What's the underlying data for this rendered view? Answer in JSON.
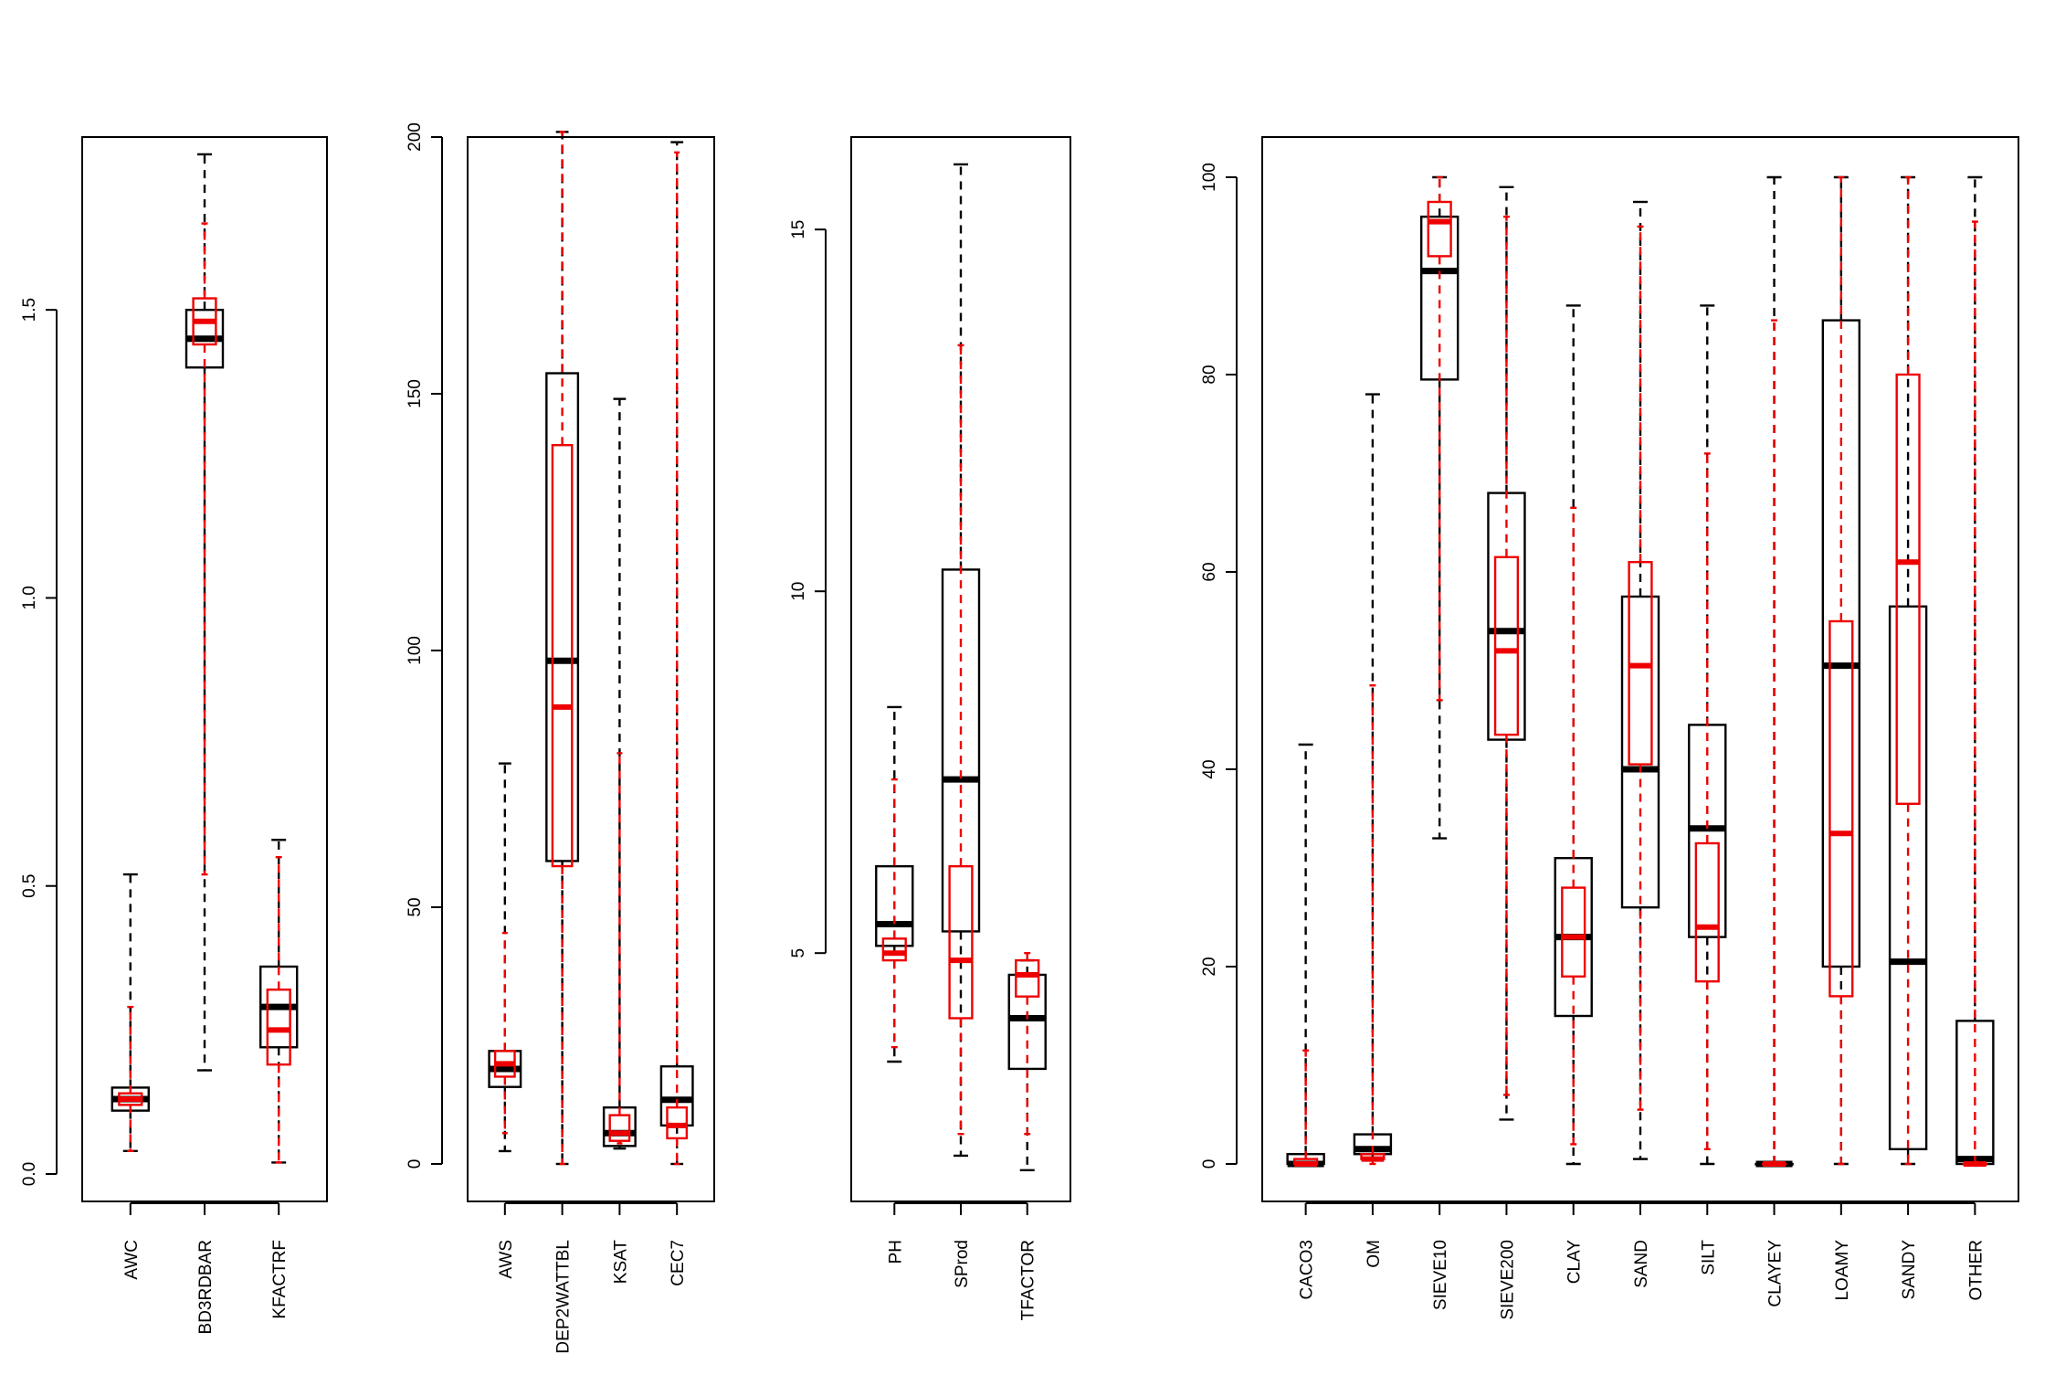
{
  "colors": {
    "black": "#000000",
    "red": "#ee0000"
  },
  "chart_data": [
    {
      "type": "boxplot",
      "ylim": [
        0,
        1.8
      ],
      "yticks": [
        0,
        0.5,
        1,
        1.5
      ],
      "ytick_labels": [
        "0.0",
        "0.5",
        "1.0",
        "1.5"
      ],
      "categories": [
        "AWC",
        "BD3RDBAR",
        "KFACTRF"
      ],
      "series": [
        {
          "color": "black",
          "boxes": [
            {
              "min": 0.04,
              "q1": 0.11,
              "median": 0.13,
              "q3": 0.15,
              "max": 0.52
            },
            {
              "min": 0.18,
              "q1": 1.4,
              "median": 1.45,
              "q3": 1.5,
              "max": 1.77
            },
            {
              "min": 0.02,
              "q1": 0.22,
              "median": 0.29,
              "q3": 0.36,
              "max": 0.58
            }
          ]
        },
        {
          "color": "red",
          "boxes": [
            {
              "min": 0.04,
              "q1": 0.12,
              "median": 0.13,
              "q3": 0.14,
              "max": 0.29
            },
            {
              "min": 0.52,
              "q1": 1.44,
              "median": 1.48,
              "q3": 1.52,
              "max": 1.65
            },
            {
              "min": 0.02,
              "q1": 0.19,
              "median": 0.25,
              "q3": 0.32,
              "max": 0.55
            }
          ]
        }
      ]
    },
    {
      "type": "boxplot",
      "ylim": [
        0,
        200
      ],
      "yticks": [
        0,
        50,
        100,
        150,
        200
      ],
      "ytick_labels": [
        "0",
        "50",
        "100",
        "150",
        "200"
      ],
      "categories": [
        "AWS",
        "DEP2WATTBL",
        "KSAT",
        "CEC7"
      ],
      "series": [
        {
          "color": "black",
          "boxes": [
            {
              "min": 2.5,
              "q1": 15,
              "median": 18.5,
              "q3": 22,
              "max": 78
            },
            {
              "min": 0,
              "q1": 59,
              "median": 98,
              "q3": 154,
              "max": 201
            },
            {
              "min": 3,
              "q1": 3.5,
              "median": 6,
              "q3": 11,
              "max": 149
            },
            {
              "min": 0,
              "q1": 7.5,
              "median": 12.5,
              "q3": 19,
              "max": 199
            }
          ]
        },
        {
          "color": "red",
          "boxes": [
            {
              "min": 6,
              "q1": 17,
              "median": 19.5,
              "q3": 22,
              "max": 45
            },
            {
              "min": 0,
              "q1": 58,
              "median": 89,
              "q3": 140,
              "max": 201
            },
            {
              "min": 4,
              "q1": 4.5,
              "median": 6,
              "q3": 9.5,
              "max": 80
            },
            {
              "min": 0,
              "q1": 5,
              "median": 7.5,
              "q3": 11,
              "max": 197
            }
          ]
        }
      ]
    },
    {
      "type": "boxplot",
      "ylim": [
        1,
        16
      ],
      "yticks": [
        5,
        10,
        15
      ],
      "ytick_labels": [
        "5",
        "10",
        "15"
      ],
      "categories": [
        "PH",
        "SProd",
        "TFACTOR"
      ],
      "series": [
        {
          "color": "black",
          "boxes": [
            {
              "min": 3.5,
              "q1": 5.1,
              "median": 5.4,
              "q3": 6.2,
              "max": 8.4
            },
            {
              "min": 2.2,
              "q1": 5.3,
              "median": 7.4,
              "q3": 10.3,
              "max": 15.9
            },
            {
              "min": 2.0,
              "q1": 3.4,
              "median": 4.1,
              "q3": 4.7,
              "max": 4.9
            }
          ]
        },
        {
          "color": "red",
          "boxes": [
            {
              "min": 3.7,
              "q1": 4.9,
              "median": 5.0,
              "q3": 5.2,
              "max": 7.4
            },
            {
              "min": 2.5,
              "q1": 4.1,
              "median": 4.9,
              "q3": 6.2,
              "max": 13.4
            },
            {
              "min": 2.5,
              "q1": 4.4,
              "median": 4.7,
              "q3": 4.9,
              "max": 5.0
            }
          ]
        }
      ]
    },
    {
      "type": "boxplot",
      "ylim": [
        0,
        100
      ],
      "yticks": [
        0,
        20,
        40,
        60,
        80,
        100
      ],
      "ytick_labels": [
        "0",
        "20",
        "40",
        "60",
        "80",
        "100"
      ],
      "categories": [
        "CACO3",
        "OM",
        "SIEVE10",
        "SIEVE200",
        "CLAY",
        "SAND",
        "SILT",
        "CLAYEY",
        "LOAMY",
        "SANDY",
        "OTHER"
      ],
      "series": [
        {
          "color": "black",
          "boxes": [
            {
              "min": 0,
              "q1": 0,
              "median": 0,
              "q3": 1,
              "max": 42.5
            },
            {
              "min": 0.5,
              "q1": 1,
              "median": 1.5,
              "q3": 3,
              "max": 78
            },
            {
              "min": 33,
              "q1": 79.5,
              "median": 90.5,
              "q3": 96,
              "max": 100
            },
            {
              "min": 4.5,
              "q1": 43,
              "median": 54,
              "q3": 68,
              "max": 99
            },
            {
              "min": 0,
              "q1": 15,
              "median": 23,
              "q3": 31,
              "max": 87
            },
            {
              "min": 0.5,
              "q1": 26,
              "median": 40,
              "q3": 57.5,
              "max": 97.5
            },
            {
              "min": 0,
              "q1": 23,
              "median": 34,
              "q3": 44.5,
              "max": 87
            },
            {
              "min": 0,
              "q1": 0,
              "median": 0,
              "q3": 0,
              "max": 100
            },
            {
              "min": 0,
              "q1": 20,
              "median": 50.5,
              "q3": 85.5,
              "max": 100
            },
            {
              "min": 0,
              "q1": 1.5,
              "median": 20.5,
              "q3": 56.5,
              "max": 100
            },
            {
              "min": 0,
              "q1": 0,
              "median": 0.5,
              "q3": 14.5,
              "max": 100
            }
          ]
        },
        {
          "color": "red",
          "boxes": [
            {
              "min": 0,
              "q1": 0,
              "median": 0,
              "q3": 0.5,
              "max": 11.5
            },
            {
              "min": 0,
              "q1": 0.5,
              "median": 0.5,
              "q3": 1,
              "max": 48.5
            },
            {
              "min": 47,
              "q1": 92,
              "median": 95.5,
              "q3": 97.5,
              "max": 100
            },
            {
              "min": 7,
              "q1": 43.5,
              "median": 52,
              "q3": 61.5,
              "max": 96
            },
            {
              "min": 2,
              "q1": 19,
              "median": 23,
              "q3": 28,
              "max": 66.5
            },
            {
              "min": 5.5,
              "q1": 40.5,
              "median": 50.5,
              "q3": 61,
              "max": 95
            },
            {
              "min": 1.5,
              "q1": 18.5,
              "median": 24,
              "q3": 32.5,
              "max": 72
            },
            {
              "min": 0,
              "q1": 0,
              "median": 0,
              "q3": 0,
              "max": 85.5
            },
            {
              "min": 0,
              "q1": 17,
              "median": 33.5,
              "q3": 55,
              "max": 100
            },
            {
              "min": 0,
              "q1": 36.5,
              "median": 61,
              "q3": 80,
              "max": 100
            },
            {
              "min": 0,
              "q1": 0,
              "median": 0,
              "q3": 0,
              "max": 95.5
            }
          ]
        }
      ]
    }
  ]
}
